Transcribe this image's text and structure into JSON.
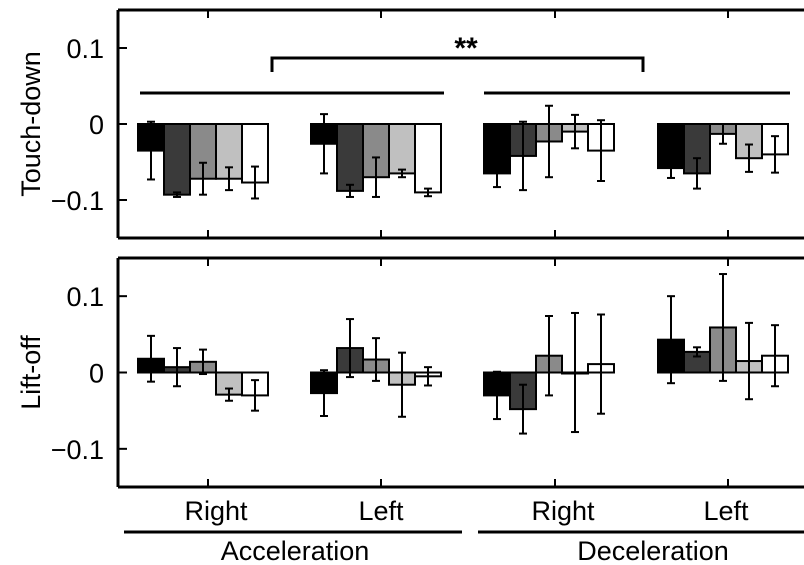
{
  "chart_data": {
    "type": "bar",
    "group_labels": [
      "Acceleration",
      "Deceleration"
    ],
    "category_labels": [
      "Right",
      "Left",
      "Right",
      "Left"
    ],
    "series_fills": [
      "#000000",
      "#3a3a3a",
      "#8a8a8a",
      "#c0c0c0",
      "#ffffff"
    ],
    "panels": [
      {
        "ylabel": "Touch-down",
        "ylim": [
          -0.15,
          0.15
        ],
        "yticks": [
          -0.1,
          0,
          0.1
        ],
        "ytick_labels": [
          "−0.1",
          "0",
          "0.1"
        ],
        "significance": {
          "label": "**",
          "between": [
            0,
            2
          ]
        },
        "groups": [
          {
            "values": [
              -0.035,
              -0.093,
              -0.072,
              -0.072,
              -0.077
            ],
            "errors": [
              0.038,
              0.003,
              0.021,
              0.015,
              0.021
            ]
          },
          {
            "values": [
              -0.026,
              -0.088,
              -0.07,
              -0.065,
              -0.09
            ],
            "errors": [
              0.039,
              0.008,
              0.026,
              0.005,
              0.005
            ]
          },
          {
            "values": [
              -0.065,
              -0.042,
              -0.023,
              -0.01,
              -0.035
            ],
            "errors": [
              0.018,
              0.045,
              0.047,
              0.022,
              0.04
            ]
          },
          {
            "values": [
              -0.058,
              -0.065,
              -0.013,
              -0.045,
              -0.04
            ],
            "errors": [
              0.013,
              0.02,
              0.013,
              0.018,
              0.024
            ]
          }
        ]
      },
      {
        "ylabel": "Lift-off",
        "ylim": [
          -0.15,
          0.15
        ],
        "yticks": [
          -0.1,
          0,
          0.1
        ],
        "ytick_labels": [
          "−0.1",
          "0",
          "0.1"
        ],
        "groups": [
          {
            "values": [
              0.018,
              0.007,
              0.014,
              -0.029,
              -0.03
            ],
            "errors": [
              0.03,
              0.025,
              0.016,
              0.008,
              0.02
            ]
          },
          {
            "values": [
              -0.027,
              0.032,
              0.017,
              -0.016,
              -0.005
            ],
            "errors": [
              0.03,
              0.038,
              0.028,
              0.042,
              0.012
            ]
          },
          {
            "values": [
              -0.03,
              -0.048,
              0.022,
              0.0,
              0.011
            ],
            "errors": [
              0.031,
              0.032,
              0.052,
              0.078,
              0.065
            ]
          },
          {
            "values": [
              0.043,
              0.027,
              0.059,
              0.015,
              0.022
            ],
            "errors": [
              0.057,
              0.006,
              0.07,
              0.05,
              0.04
            ]
          }
        ]
      }
    ]
  }
}
